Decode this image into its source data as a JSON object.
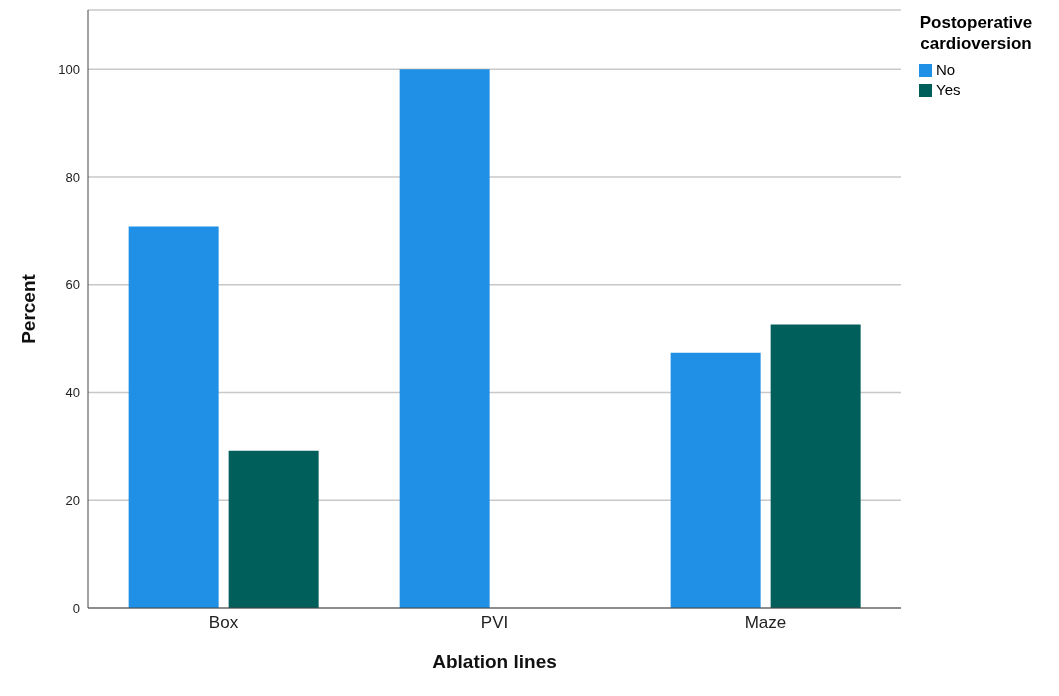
{
  "chart_data": {
    "type": "bar",
    "xlabel": "Ablation lines",
    "ylabel": "Percent",
    "legend_title": "Postoperative cardioversion",
    "categories": [
      "Box",
      "PVI",
      "Maze"
    ],
    "series": [
      {
        "name": "No",
        "color": "#1f90e6",
        "values": [
          70.8,
          100,
          47.4
        ]
      },
      {
        "name": "Yes",
        "color": "#005f5b",
        "values": [
          29.2,
          0,
          52.6
        ]
      }
    ],
    "ylim": [
      0,
      111
    ],
    "yticks": [
      0,
      20,
      40,
      60,
      80,
      100
    ],
    "grid": "y",
    "legend": "top right"
  }
}
